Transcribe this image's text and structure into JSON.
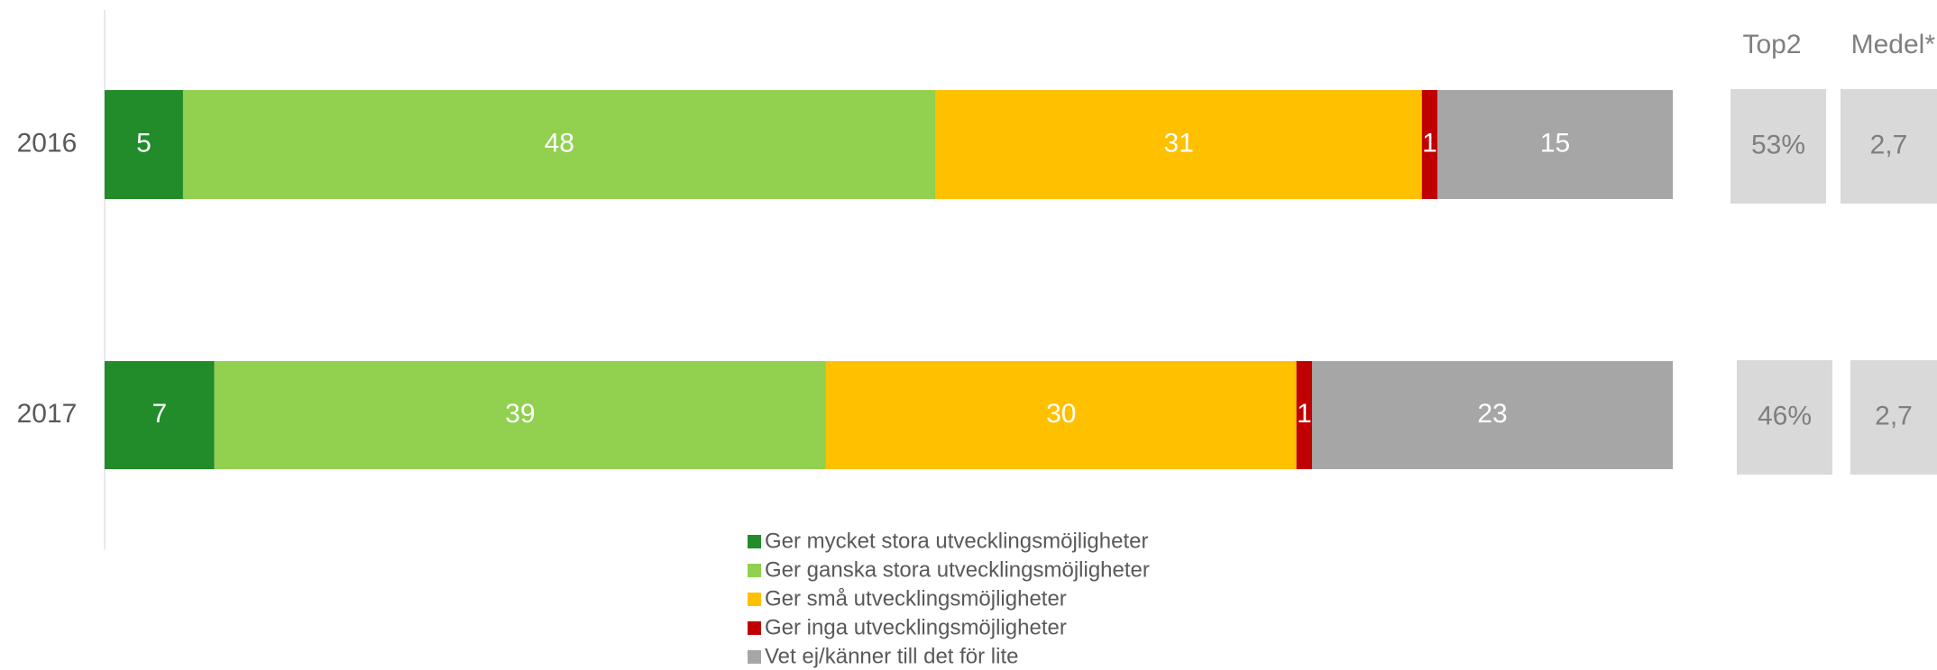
{
  "chart_data": {
    "type": "stacked_bar_horizontal",
    "categories": [
      "2016",
      "2017"
    ],
    "xlim": [
      0,
      100
    ],
    "series": [
      {
        "name": "Ger mycket stora utvecklingsmöjligheter",
        "color": "#228b2a",
        "values": [
          5,
          7
        ]
      },
      {
        "name": "Ger ganska stora utvecklingsmöjligheter",
        "color": "#92d050",
        "values": [
          48,
          39
        ]
      },
      {
        "name": "Ger små utvecklingsmöjligheter",
        "color": "#ffc000",
        "values": [
          31,
          30
        ]
      },
      {
        "name": "Ger inga utvecklingsmöjligheter",
        "color": "#c00000",
        "values": [
          1,
          1
        ]
      },
      {
        "name": "Vet ej/känner till det för lite",
        "color": "#a6a6a6",
        "values": [
          15,
          23
        ]
      }
    ],
    "side_columns": [
      {
        "header": "Top2",
        "values": [
          53,
          46
        ],
        "value_labels": [
          "53%",
          "46%"
        ]
      },
      {
        "header": "Medel*",
        "values": [
          2.7,
          2.7
        ],
        "value_labels": [
          "2,7",
          "2,7"
        ]
      }
    ]
  }
}
